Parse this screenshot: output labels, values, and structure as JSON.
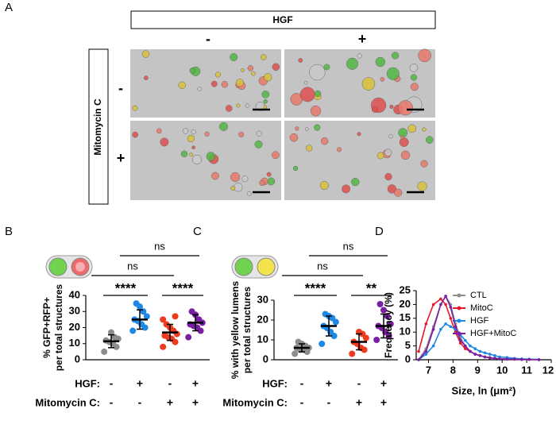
{
  "panel_labels": [
    "A",
    "B",
    "C",
    "D"
  ],
  "panel_a": {
    "top_label": "HGF",
    "top_levels": [
      "-",
      "+"
    ],
    "side_label": "Mitomycin C",
    "side_levels": [
      "-",
      "+"
    ]
  },
  "chart_data": [
    {
      "type": "dotplot",
      "ylabel": [
        "% GFP+RFP+",
        "per total structures"
      ],
      "ylim": [
        0,
        40
      ],
      "yticks": [
        0,
        10,
        20,
        30,
        40
      ],
      "groups": [
        {
          "color": "#8c8c8c",
          "points": [
            5,
            8,
            10,
            11,
            12,
            13,
            14,
            17
          ],
          "mean": 11.5,
          "sd": 4
        },
        {
          "color": "#1e88e5",
          "points": [
            18,
            20,
            22,
            24,
            25,
            27,
            30,
            33,
            35
          ],
          "mean": 25,
          "sd": 6
        },
        {
          "color": "#ee3b1e",
          "points": [
            8,
            11,
            13,
            14,
            15,
            16,
            18,
            20,
            22,
            25,
            27
          ],
          "mean": 17,
          "sd": 5
        },
        {
          "color": "#7b1fa2",
          "points": [
            14,
            18,
            20,
            21,
            22,
            23,
            25,
            28,
            30
          ],
          "mean": 23,
          "sd": 5
        }
      ],
      "annotations": [
        "****",
        "****",
        "ns",
        "ns"
      ],
      "rows": [
        {
          "label": "HGF:",
          "levels": [
            "-",
            "+",
            "-",
            "+"
          ]
        },
        {
          "label": "Mitomycin C:",
          "levels": [
            "-",
            "-",
            "+",
            "+"
          ]
        }
      ]
    },
    {
      "type": "dotplot",
      "ylabel": [
        "% with yellow lumens",
        "per total structures"
      ],
      "ylim": [
        0,
        30
      ],
      "yticks": [
        0,
        10,
        20,
        30
      ],
      "groups": [
        {
          "color": "#8c8c8c",
          "points": [
            3,
            4,
            5,
            5,
            6,
            6,
            7,
            8,
            9
          ],
          "mean": 6,
          "sd": 2
        },
        {
          "color": "#1e88e5",
          "points": [
            8,
            12,
            14,
            16,
            17,
            19,
            21,
            22,
            23
          ],
          "mean": 17,
          "sd": 5
        },
        {
          "color": "#ee3b1e",
          "points": [
            3,
            5,
            6,
            8,
            9,
            11,
            13,
            14
          ],
          "mean": 9,
          "sd": 4
        },
        {
          "color": "#7b1fa2",
          "points": [
            10,
            12,
            14,
            16,
            17,
            18,
            22,
            25,
            28
          ],
          "mean": 17,
          "sd": 6
        }
      ],
      "annotations": [
        "****",
        "**",
        "ns",
        "ns"
      ],
      "rows": [
        {
          "label": "HGF:",
          "levels": [
            "-",
            "+",
            "-",
            "+"
          ]
        },
        {
          "label": "Mitomycin C:",
          "levels": [
            "-",
            "-",
            "+",
            "+"
          ]
        }
      ]
    },
    {
      "type": "line",
      "xlabel": "Size, ln (μm²)",
      "ylabel": "Frequency (%)",
      "xlim": [
        6.5,
        12
      ],
      "xticks": [
        7,
        8,
        9,
        10,
        11,
        12
      ],
      "ylim": [
        0,
        25
      ],
      "yticks": [
        0,
        5,
        10,
        15,
        20,
        25
      ],
      "x": [
        6.6,
        6.9,
        7.2,
        7.5,
        7.7,
        7.9,
        8.1,
        8.3,
        8.5,
        8.7,
        8.9,
        9.1,
        9.3,
        9.5,
        9.7,
        9.9,
        10.2,
        10.5,
        10.8,
        11.1,
        11.5
      ],
      "series": [
        {
          "name": "CTL",
          "color": "#8c8c8c",
          "values": [
            0,
            4,
            12,
            20,
            23,
            20,
            13,
            8,
            5,
            3,
            2,
            1.5,
            1,
            0.8,
            0.5,
            0.3,
            0.3,
            0.2,
            0.1,
            0.1,
            0.1
          ]
        },
        {
          "name": "MitoC",
          "color": "#e8192c",
          "values": [
            3,
            13,
            20,
            22,
            20,
            15,
            10,
            6,
            4,
            3,
            2,
            1.5,
            1,
            0.7,
            0.5,
            0.3,
            0.2,
            0.2,
            0.1,
            0.1,
            0
          ]
        },
        {
          "name": "HGF",
          "color": "#1e88e5",
          "values": [
            0,
            2,
            5,
            11,
            13,
            12,
            11,
            9,
            7,
            5,
            4,
            3,
            2.5,
            2,
            1.5,
            1,
            0.8,
            0.5,
            0.3,
            0.2,
            0.1
          ]
        },
        {
          "name": "HGF+MitoC",
          "color": "#7b1fa2",
          "values": [
            0,
            3,
            11,
            20,
            23,
            19,
            12,
            7,
            5,
            3,
            2,
            1.5,
            1,
            0.7,
            0.5,
            0.3,
            0.2,
            0.2,
            0.1,
            0.1,
            0
          ]
        }
      ],
      "legend": "top-right"
    }
  ]
}
